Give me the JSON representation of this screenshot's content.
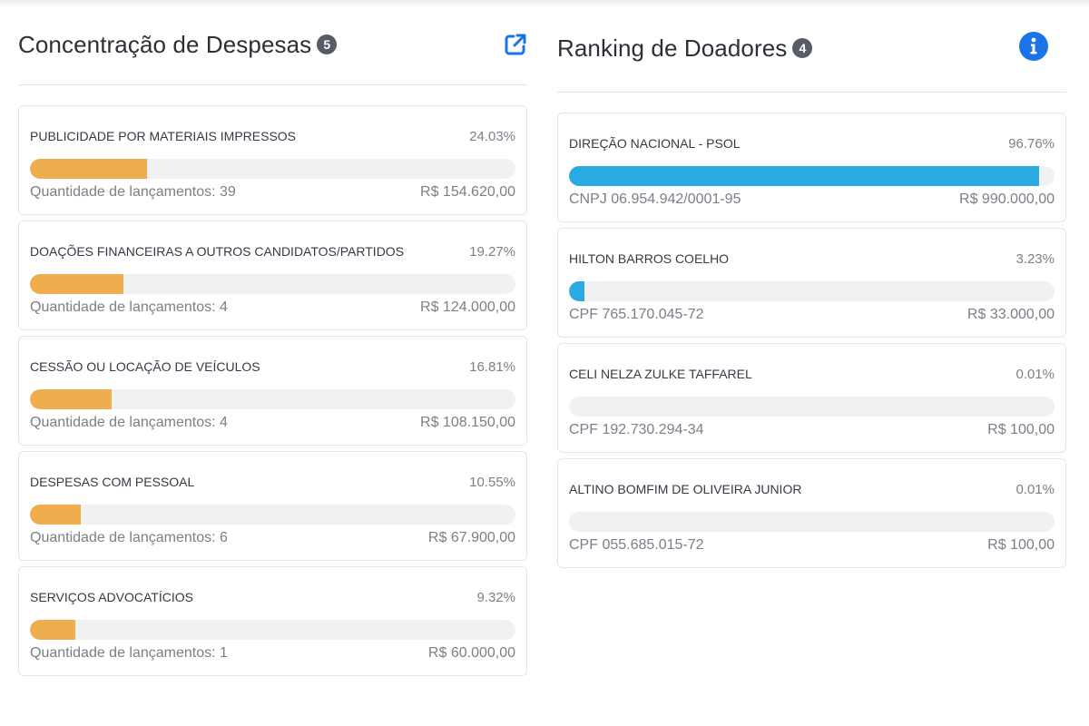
{
  "colors": {
    "expense_bar": "#f0ad4e",
    "donor_bar": "#29abe2",
    "info_icon": "#1a73e8",
    "link_icon": "#1a73e8",
    "badge": "#575c66"
  },
  "expenses": {
    "title": "Concentração de Despesas",
    "count": "5",
    "action_icon": "external-link-icon",
    "items": [
      {
        "name": "PUBLICIDADE POR MATERIAIS IMPRESSOS",
        "percent": "24.03%",
        "fill": 24.03,
        "count_label": "Quantidade de lançamentos: 39",
        "value": "R$ 154.620,00"
      },
      {
        "name": "DOAÇÕES FINANCEIRAS A OUTROS CANDIDATOS/PARTIDOS",
        "percent": "19.27%",
        "fill": 19.27,
        "count_label": "Quantidade de lançamentos: 4",
        "value": "R$ 124.000,00"
      },
      {
        "name": "CESSÃO OU LOCAÇÃO DE VEÍCULOS",
        "percent": "16.81%",
        "fill": 16.81,
        "count_label": "Quantidade de lançamentos: 4",
        "value": "R$ 108.150,00"
      },
      {
        "name": "DESPESAS COM PESSOAL",
        "percent": "10.55%",
        "fill": 10.55,
        "count_label": "Quantidade de lançamentos: 6",
        "value": "R$ 67.900,00"
      },
      {
        "name": "SERVIÇOS ADVOCATÍCIOS",
        "percent": "9.32%",
        "fill": 9.32,
        "count_label": "Quantidade de lançamentos: 1",
        "value": "R$ 60.000,00"
      }
    ]
  },
  "donors": {
    "title": "Ranking de Doadores",
    "count": "4",
    "action_icon": "info-icon",
    "items": [
      {
        "name": "DIREÇÃO NACIONAL - PSOL",
        "percent": "96.76%",
        "fill": 96.76,
        "doc": "CNPJ 06.954.942/0001-95",
        "value": "R$ 990.000,00"
      },
      {
        "name": "HILTON BARROS COELHO",
        "percent": "3.23%",
        "fill": 3.23,
        "doc": "CPF 765.170.045-72",
        "value": "R$ 33.000,00"
      },
      {
        "name": "CELI NELZA ZULKE TAFFAREL",
        "percent": "0.01%",
        "fill": 0.01,
        "doc": "CPF 192.730.294-34",
        "value": "R$ 100,00"
      },
      {
        "name": "ALTINO BOMFIM DE OLIVEIRA JUNIOR",
        "percent": "0.01%",
        "fill": 0.01,
        "doc": "CPF 055.685.015-72",
        "value": "R$ 100,00"
      }
    ]
  }
}
